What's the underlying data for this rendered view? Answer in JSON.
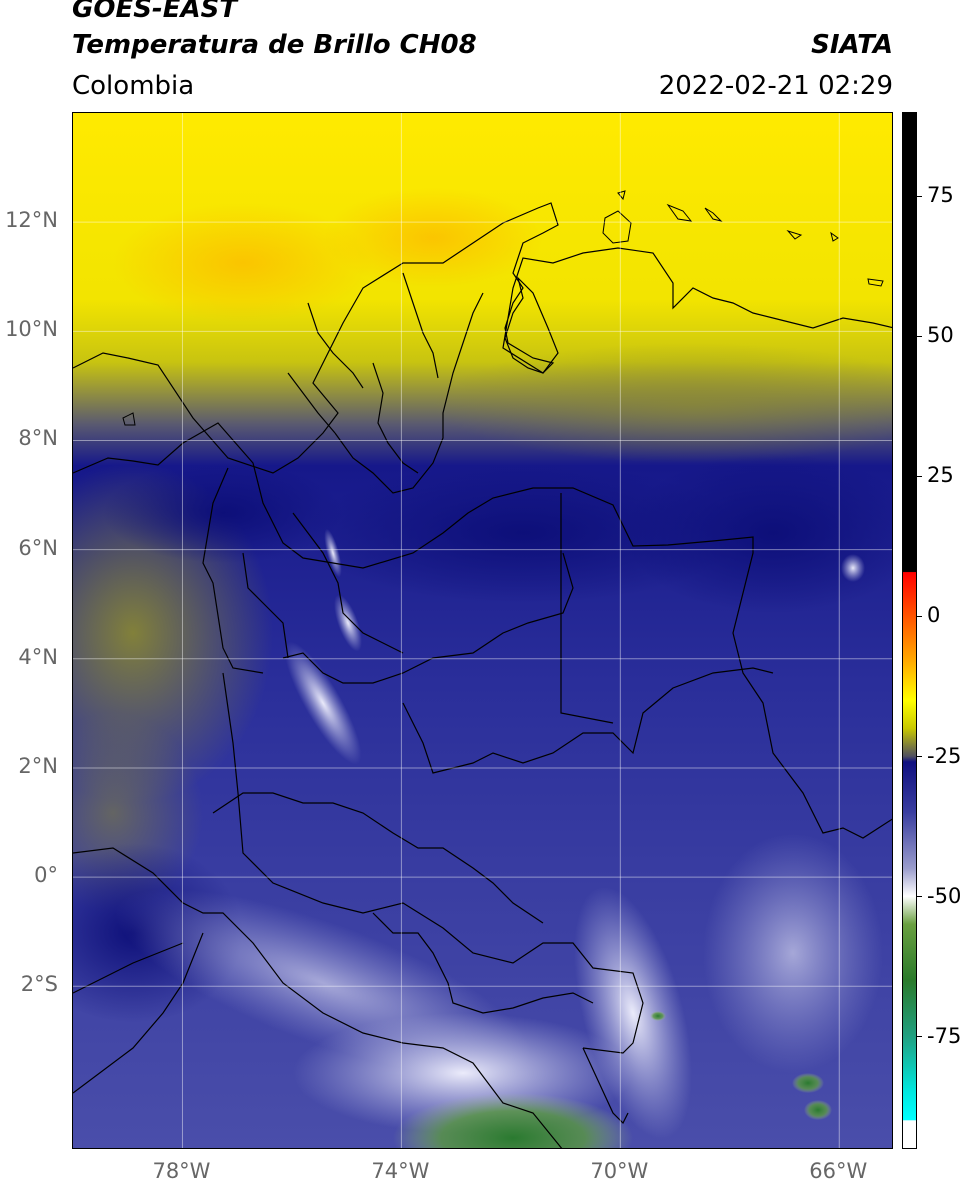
{
  "header": {
    "satellite": "GOES-EAST",
    "product": "Temperatura de Brillo CH08",
    "region": "Colombia",
    "agency": "SIATA",
    "datetime": "2022-02-21 02:29"
  },
  "map": {
    "lon_range": [
      -80,
      -65
    ],
    "lat_range": [
      -5,
      14
    ],
    "lat_ticks": [
      {
        "value": 12,
        "label": "12°N"
      },
      {
        "value": 10,
        "label": "10°N"
      },
      {
        "value": 8,
        "label": "8°N"
      },
      {
        "value": 6,
        "label": "6°N"
      },
      {
        "value": 4,
        "label": "4°N"
      },
      {
        "value": 2,
        "label": "2°N"
      },
      {
        "value": 0,
        "label": "0°"
      },
      {
        "value": -2,
        "label": "2°S"
      }
    ],
    "lon_ticks": [
      {
        "value": -78,
        "label": "78°W"
      },
      {
        "value": -74,
        "label": "74°W"
      },
      {
        "value": -70,
        "label": "70°W"
      },
      {
        "value": -66,
        "label": "66°W"
      }
    ],
    "grid": true
  },
  "colorbar": {
    "range": [
      -95,
      90
    ],
    "ticks": [
      {
        "value": 75,
        "label": "75"
      },
      {
        "value": 50,
        "label": "50"
      },
      {
        "value": 25,
        "label": "25"
      },
      {
        "value": 0,
        "label": "0"
      },
      {
        "value": -25,
        "label": "-25"
      },
      {
        "value": -50,
        "label": "-50"
      },
      {
        "value": -75,
        "label": "-75"
      }
    ],
    "color_stops": [
      {
        "value": 90,
        "color": "#000000"
      },
      {
        "value": 8,
        "color": "#000000"
      },
      {
        "value": 7.9,
        "color": "#ff0000"
      },
      {
        "value": 0,
        "color": "#ff5500"
      },
      {
        "value": -8,
        "color": "#ffaa00"
      },
      {
        "value": -15,
        "color": "#ffff00"
      },
      {
        "value": -20,
        "color": "#c8c800"
      },
      {
        "value": -25,
        "color": "#505060"
      },
      {
        "value": -26,
        "color": "#101080"
      },
      {
        "value": -35,
        "color": "#3a3ea0"
      },
      {
        "value": -45,
        "color": "#9a9ccc"
      },
      {
        "value": -50,
        "color": "#ffffff"
      },
      {
        "value": -55,
        "color": "#6aa040"
      },
      {
        "value": -65,
        "color": "#2a7a2a"
      },
      {
        "value": -75,
        "color": "#20a080"
      },
      {
        "value": -85,
        "color": "#00e8e0"
      },
      {
        "value": -90,
        "color": "#00ffff"
      },
      {
        "value": -90.1,
        "color": "#ffffff"
      },
      {
        "value": -95,
        "color": "#ffffff"
      }
    ]
  }
}
